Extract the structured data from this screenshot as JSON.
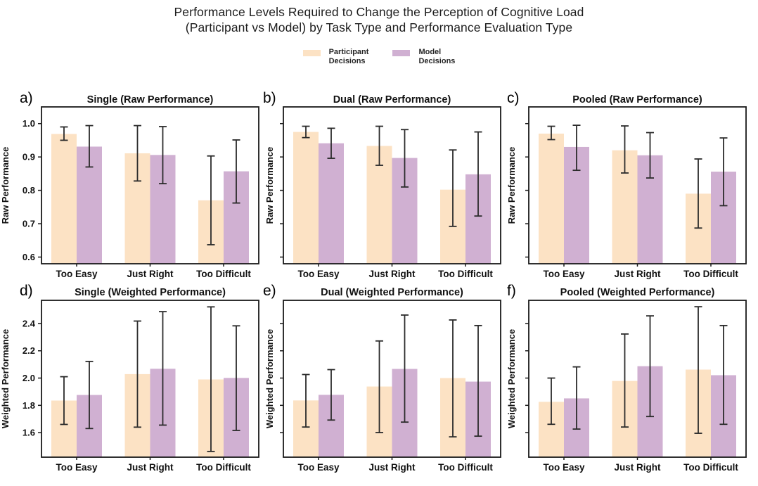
{
  "header": {
    "title_line1": "Performance Levels Required to Change the Perception of Cognitive Load",
    "title_line2": "(Participant vs Model) by Task Type and Performance Evaluation Type"
  },
  "legend": {
    "items": [
      {
        "line1": "Participant",
        "line2": "Decisions",
        "color": "#FCE2C4"
      },
      {
        "line1": "Model",
        "line2": "Decisions",
        "color": "#D0B0D2"
      }
    ]
  },
  "colors": {
    "participant": "#FCE2C4",
    "model": "#D0B0D2",
    "error_bar": "#2B2B2B",
    "spine": "#1A1A1A",
    "text": "#111111"
  },
  "chart_data": {
    "type": "bar",
    "title": "Performance Levels Required to Change the Perception of Cognitive Load (Participant vs Model) by Task Type and Performance Evaluation Type",
    "categories": [
      "Too Easy",
      "Just Right",
      "Too Difficult"
    ],
    "series_names": [
      "Participant Decisions",
      "Model Decisions"
    ],
    "legend_position": "top",
    "grid": false,
    "error_bars": true,
    "rows": {
      "raw": {
        "ylabel": "Raw Performance",
        "ylim": [
          0.58,
          1.05
        ],
        "yticks": [
          1.0,
          0.9,
          0.8,
          0.7,
          0.6
        ],
        "tick_decimals": 1
      },
      "weighted": {
        "ylabel": "Weighted Performance",
        "ylim": [
          1.42,
          2.57
        ],
        "yticks": [
          2.4,
          2.2,
          2.0,
          1.8,
          1.6
        ],
        "tick_decimals": 1
      }
    },
    "panels": [
      {
        "letter": "a)",
        "title": "Single (Raw Performance)",
        "row": "raw",
        "show_ytick_labels": true,
        "series": [
          {
            "name": "Participant Decisions",
            "values": [
              0.969,
              0.911,
              0.77
            ],
            "err_lo": [
              0.95,
              0.828,
              0.637
            ],
            "err_hi": [
              0.99,
              0.994,
              0.903
            ]
          },
          {
            "name": "Model Decisions",
            "values": [
              0.931,
              0.906,
              0.857
            ],
            "err_lo": [
              0.87,
              0.82,
              0.762
            ],
            "err_hi": [
              0.994,
              0.991,
              0.951
            ]
          }
        ]
      },
      {
        "letter": "b)",
        "title": "Dual (Raw Performance)",
        "row": "raw",
        "show_ytick_labels": false,
        "series": [
          {
            "name": "Participant Decisions",
            "values": [
              0.975,
              0.933,
              0.802
            ],
            "err_lo": [
              0.958,
              0.875,
              0.692
            ],
            "err_hi": [
              0.992,
              0.992,
              0.921
            ]
          },
          {
            "name": "Model Decisions",
            "values": [
              0.941,
              0.897,
              0.848
            ],
            "err_lo": [
              0.896,
              0.81,
              0.723
            ],
            "err_hi": [
              0.986,
              0.982,
              0.975
            ]
          }
        ]
      },
      {
        "letter": "c)",
        "title": "Pooled (Raw Performance)",
        "row": "raw",
        "show_ytick_labels": false,
        "series": [
          {
            "name": "Participant Decisions",
            "values": [
              0.97,
              0.92,
              0.79
            ],
            "err_lo": [
              0.952,
              0.852,
              0.687
            ],
            "err_hi": [
              0.992,
              0.993,
              0.894
            ]
          },
          {
            "name": "Model Decisions",
            "values": [
              0.93,
              0.905,
              0.856
            ],
            "err_lo": [
              0.86,
              0.837,
              0.754
            ],
            "err_hi": [
              0.995,
              0.973,
              0.957
            ]
          }
        ]
      },
      {
        "letter": "d)",
        "title": "Single (Weighted Performance)",
        "row": "weighted",
        "show_ytick_labels": true,
        "series": [
          {
            "name": "Participant Decisions",
            "values": [
              1.835,
              2.029,
              1.99
            ],
            "err_lo": [
              1.66,
              1.64,
              1.462
            ],
            "err_hi": [
              2.01,
              2.418,
              2.522
            ]
          },
          {
            "name": "Model Decisions",
            "values": [
              1.876,
              2.068,
              2.001
            ],
            "err_lo": [
              1.63,
              1.655,
              1.616
            ],
            "err_hi": [
              2.122,
              2.487,
              2.383
            ]
          }
        ]
      },
      {
        "letter": "e)",
        "title": "Dual (Weighted Performance)",
        "row": "weighted",
        "show_ytick_labels": false,
        "series": [
          {
            "name": "Participant Decisions",
            "values": [
              1.836,
              1.938,
              2.0
            ],
            "err_lo": [
              1.641,
              1.6,
              1.569
            ],
            "err_hi": [
              2.026,
              2.272,
              2.426
            ]
          },
          {
            "name": "Model Decisions",
            "values": [
              1.877,
              2.067,
              1.974
            ],
            "err_lo": [
              1.692,
              1.677,
              1.574
            ],
            "err_hi": [
              2.062,
              2.462,
              2.385
            ]
          }
        ]
      },
      {
        "letter": "f)",
        "title": "Pooled (Weighted Performance)",
        "row": "weighted",
        "show_ytick_labels": false,
        "series": [
          {
            "name": "Participant Decisions",
            "values": [
              1.826,
              1.979,
              2.062
            ],
            "err_lo": [
              1.661,
              1.641,
              1.595
            ],
            "err_hi": [
              2.0,
              2.323,
              2.523
            ]
          },
          {
            "name": "Model Decisions",
            "values": [
              1.851,
              2.087,
              2.021
            ],
            "err_lo": [
              1.626,
              1.718,
              1.661
            ],
            "err_hi": [
              2.082,
              2.456,
              2.385
            ]
          }
        ]
      }
    ]
  }
}
